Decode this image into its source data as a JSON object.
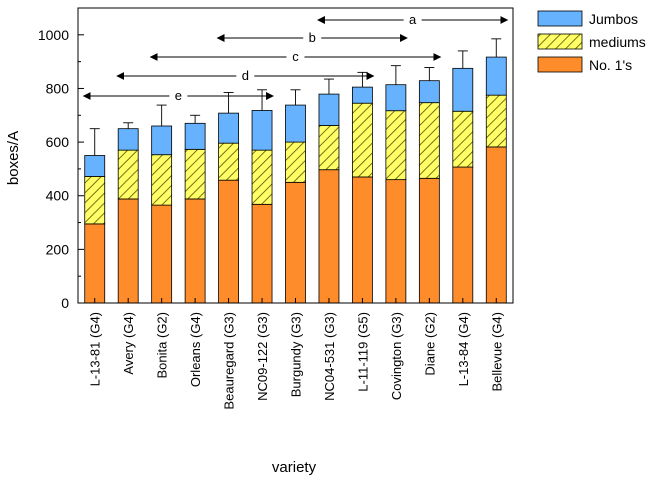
{
  "chart_data": {
    "type": "bar",
    "stacked": true,
    "error_bars": true,
    "xlabel": "variety",
    "ylabel": "boxes/A",
    "ylim": [
      0,
      1100
    ],
    "yticks": [
      0,
      200,
      400,
      600,
      800,
      1000
    ],
    "grid": false,
    "legend_position": "top-right",
    "categories": [
      "L-13-81 (G4)",
      "Avery (G4)",
      "Bonita (G2)",
      "Orleans (G4)",
      "Beauregard (G3)",
      "NC09-122 (G3)",
      "Burgundy (G3)",
      "NC04-531 (G3)",
      "L-11-119 (G5)",
      "Covington (G3)",
      "Diane (G2)",
      "L-13-84 (G4)",
      "Bellevue (G4)"
    ],
    "series": [
      {
        "name": "No. 1's",
        "color": "#ff8c2a",
        "pattern": "solid",
        "values": [
          295,
          388,
          365,
          388,
          458,
          368,
          450,
          497,
          470,
          460,
          465,
          507,
          582
        ]
      },
      {
        "name": "mediums",
        "color": "#ffff66",
        "pattern": "hatched",
        "values": [
          177,
          182,
          188,
          185,
          138,
          202,
          150,
          165,
          275,
          257,
          282,
          208,
          193
        ]
      },
      {
        "name": "Jumbos",
        "color": "#66b2ff",
        "pattern": "solid",
        "values": [
          78,
          80,
          107,
          97,
          112,
          148,
          138,
          117,
          60,
          97,
          82,
          160,
          142
        ]
      }
    ],
    "error_upper": [
      650,
      672,
      738,
      700,
      785,
      795,
      795,
      835,
      860,
      885,
      878,
      940,
      985
    ],
    "significance_groups": [
      {
        "label": "a",
        "from": "NC04-531 (G3)",
        "to": "Bellevue (G4)"
      },
      {
        "label": "b",
        "from": "Beauregard (G3)",
        "to": "Covington (G3)"
      },
      {
        "label": "c",
        "from": "Bonita (G2)",
        "to": "Diane (G2)"
      },
      {
        "label": "d",
        "from": "Avery (G4)",
        "to": "L-11-119 (G5)"
      },
      {
        "label": "e",
        "from": "L-13-81 (G4)",
        "to": "NC09-122 (G3)"
      }
    ]
  }
}
